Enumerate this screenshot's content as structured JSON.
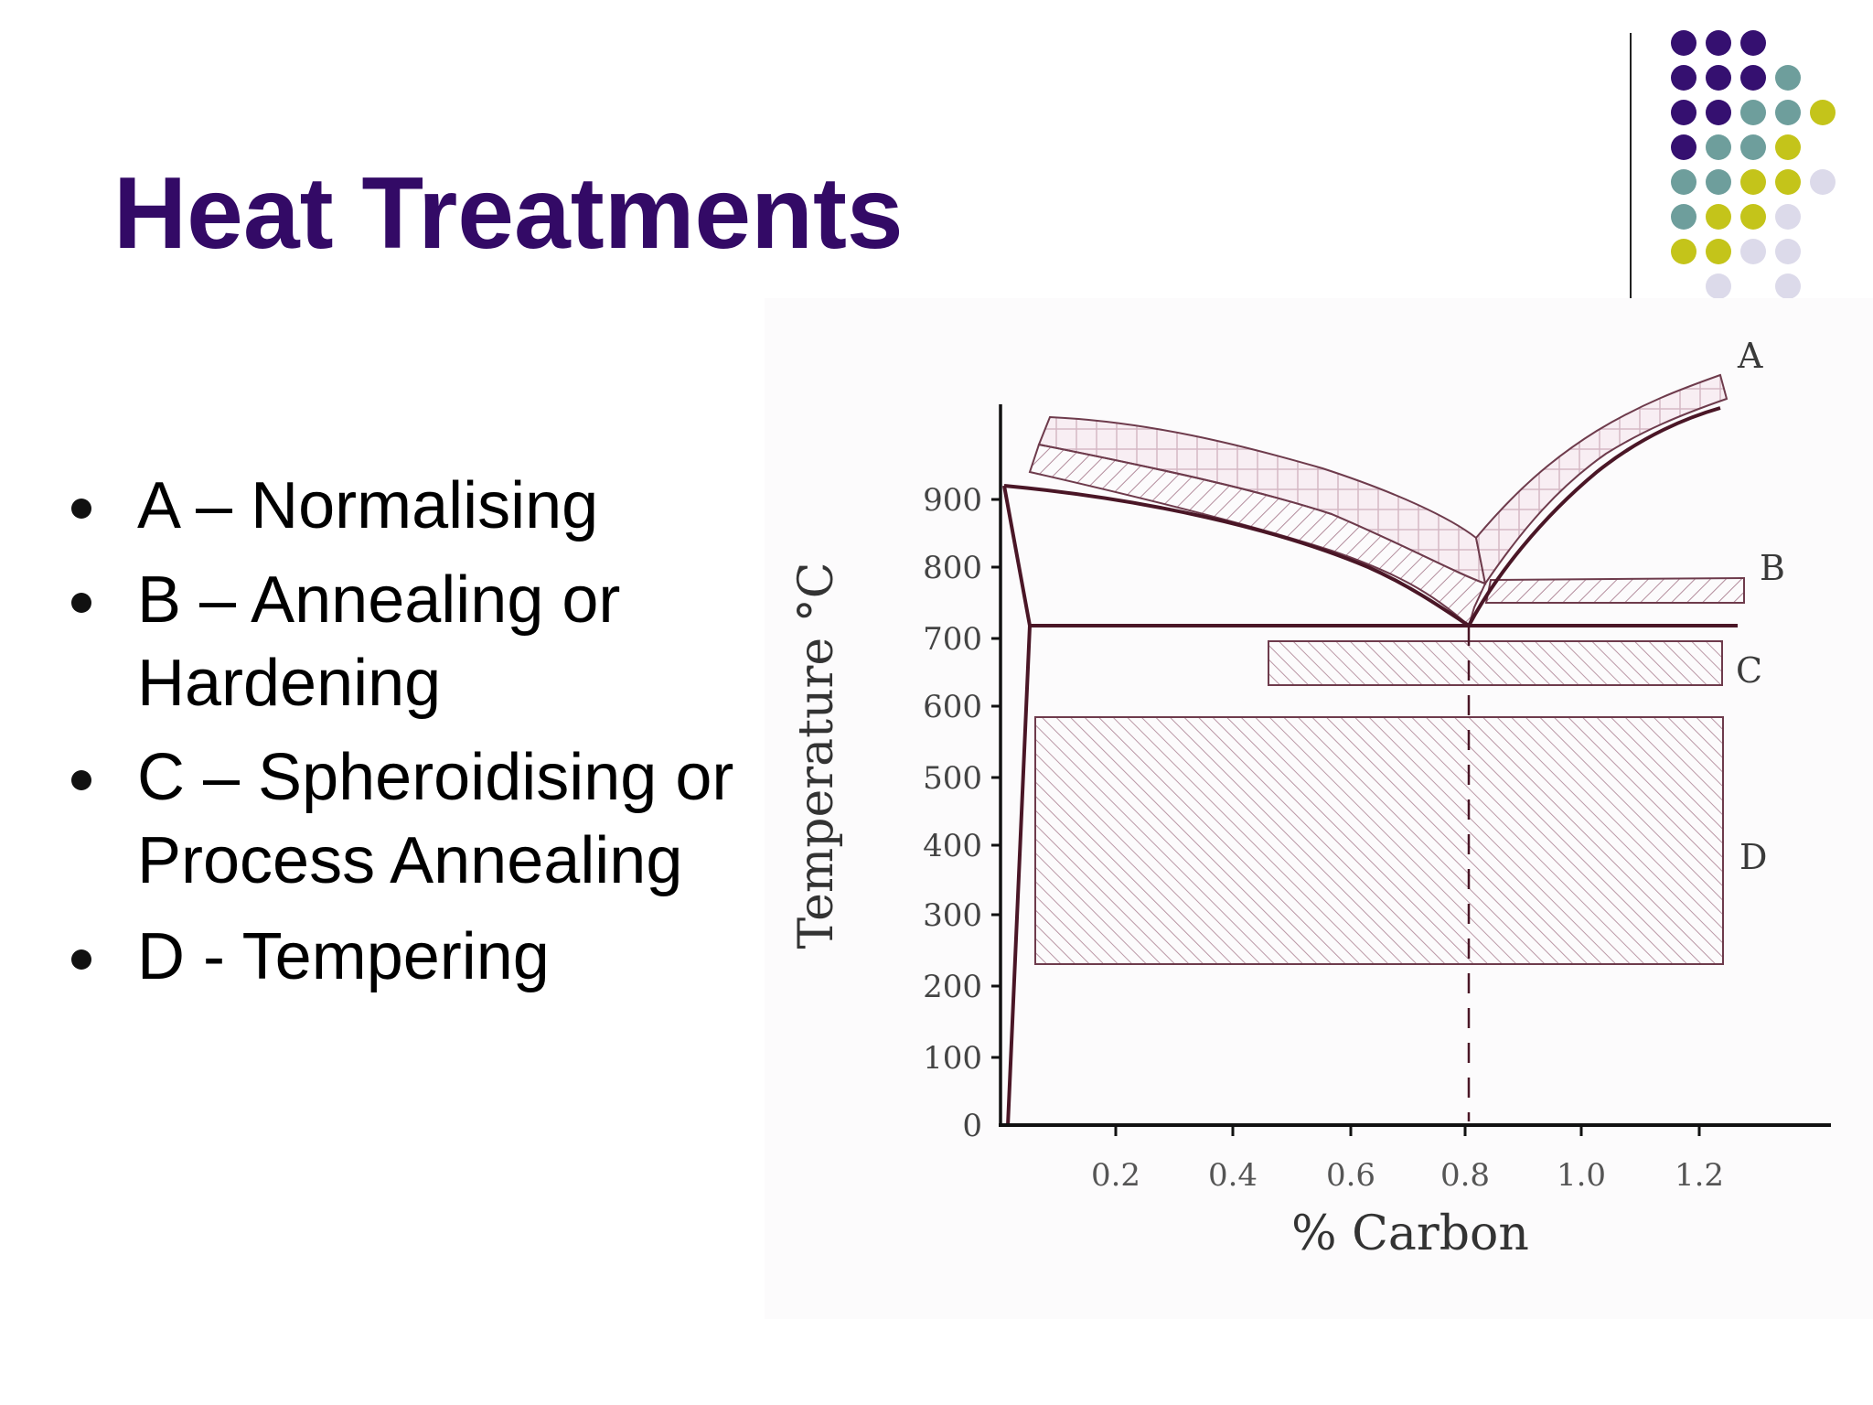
{
  "slide": {
    "title": "Heat Treatments"
  },
  "bullets": [
    {
      "text_line1": "A – Normalising",
      "text_line2": ""
    },
    {
      "text_line1": "B – Annealing or",
      "text_line2": "Hardening"
    },
    {
      "text_line1": "C – Spheroidising or",
      "text_line2": "Process Annealing"
    },
    {
      "text_line1": "D - Tempering",
      "text_line2": ""
    }
  ],
  "colors": {
    "title": "#330a66",
    "dot_purple": "#351070",
    "dot_teal": "#6e9e9c",
    "dot_yellow": "#c4c41a",
    "dot_lavender": "#dcdaea",
    "diagram_line": "#5a1e2e",
    "hatch": "#b38c9c"
  },
  "decoration": {
    "dot_grid": [
      [
        "purple",
        "purple",
        "purple",
        "none",
        "none"
      ],
      [
        "purple",
        "purple",
        "purple",
        "teal",
        "none"
      ],
      [
        "purple",
        "purple",
        "teal",
        "teal",
        "yellow"
      ],
      [
        "purple",
        "teal",
        "teal",
        "yellow",
        "none"
      ],
      [
        "teal",
        "teal",
        "yellow",
        "yellow",
        "lavender"
      ],
      [
        "teal",
        "yellow",
        "yellow",
        "lavender",
        "none"
      ],
      [
        "yellow",
        "yellow",
        "lavender",
        "lavender",
        "none"
      ],
      [
        "none",
        "lavender",
        "none",
        "lavender",
        "none"
      ]
    ]
  },
  "diagram": {
    "y_axis_label": "Temperature °C",
    "x_axis_label": "% Carbon",
    "y_ticks": [
      "0",
      "100",
      "200",
      "300",
      "400",
      "500",
      "600",
      "700",
      "800",
      "900"
    ],
    "x_ticks": [
      "0.2",
      "0.4",
      "0.6",
      "0.8",
      "1.0",
      "1.2"
    ],
    "regions": [
      {
        "label": "A",
        "name": "Normalising"
      },
      {
        "label": "B",
        "name": "Annealing or Hardening"
      },
      {
        "label": "C",
        "name": "Spheroidising or Process Annealing"
      },
      {
        "label": "D",
        "name": "Tempering"
      }
    ]
  }
}
